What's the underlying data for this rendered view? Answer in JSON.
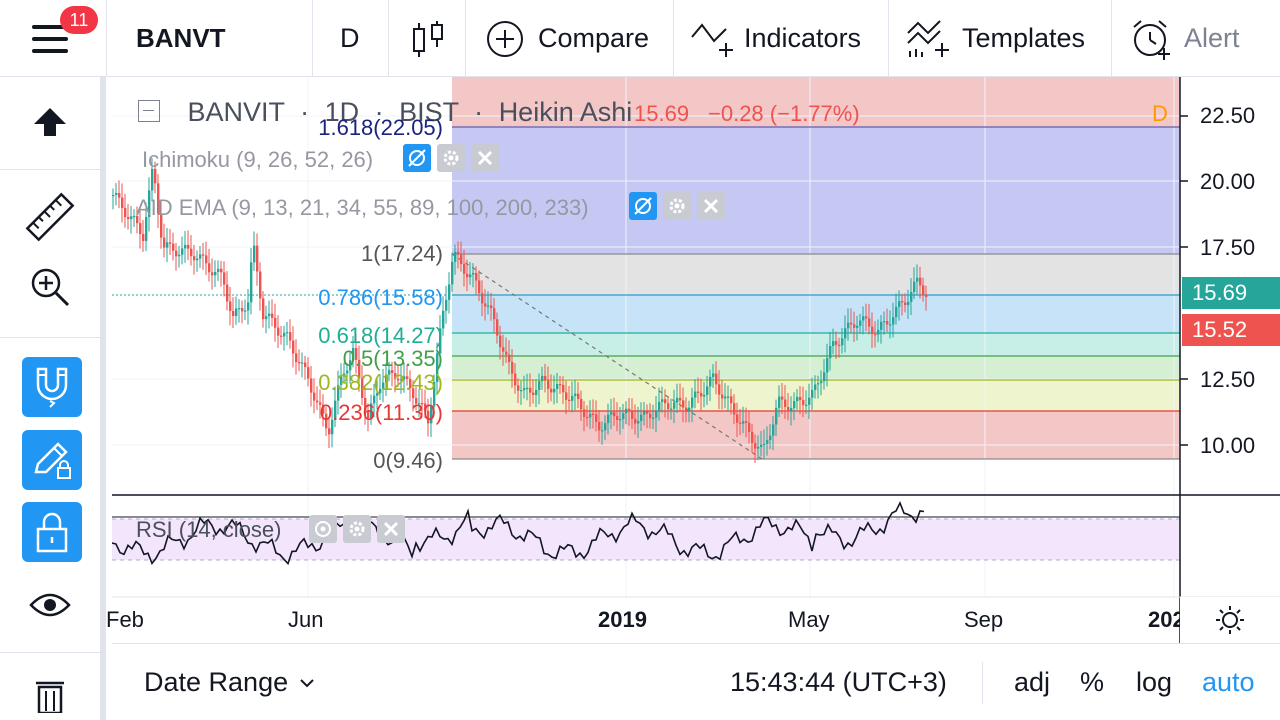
{
  "toolbar": {
    "notification_count": "11",
    "symbol": "BANVT",
    "interval": "D",
    "compare_label": "Compare",
    "indicators_label": "Indicators",
    "templates_label": "Templates",
    "alert_label": "Alert"
  },
  "legend": {
    "symbol": "BANVIT",
    "separator": "·",
    "interval": "1D",
    "exchange": "BIST",
    "chart_style": "Heikin Ashi",
    "last_price": "15.69",
    "change": "−0.28 (−1.77%)",
    "session_marker": "D"
  },
  "indicators": {
    "ichimoku": "Ichimoku (9, 26, 52, 26)",
    "ema": "AID EMA (9, 13, 21, 34, 55, 89, 100, 200, 233)",
    "rsi": "RSI (14, close)"
  },
  "fib_levels": [
    {
      "label": "1.618(22.05)",
      "color": "#1a237e"
    },
    {
      "label": "1(17.24)",
      "color": "#555555"
    },
    {
      "label": "0.786(15.58)",
      "color": "#2196f3"
    },
    {
      "label": "0.618(14.27)",
      "color": "#1fae93"
    },
    {
      "label": "0.5(13.35)",
      "color": "#43a047"
    },
    {
      "label": "0.382(12.43)",
      "color": "#a0b81e"
    },
    {
      "label": "0.236(11.30)",
      "color": "#e53935"
    },
    {
      "label": "0(9.46)",
      "color": "#555555"
    }
  ],
  "price_axis": {
    "ticks": [
      "22.50",
      "20.00",
      "17.50",
      "12.50",
      "10.00"
    ],
    "current_price": "15.69",
    "second_price": "15.52",
    "current_color": "#26a69a",
    "second_color": "#ef5350"
  },
  "time_axis": {
    "ticks": [
      "Feb",
      "Jun",
      "2019",
      "May",
      "Sep",
      "202"
    ]
  },
  "bottom": {
    "date_range_label": "Date Range",
    "clock": "15:43:44 (UTC+3)",
    "adj_label": "adj",
    "percent_label": "%",
    "log_label": "log",
    "auto_label": "auto"
  },
  "colors": {
    "up": "#26a69a",
    "down": "#ef5350",
    "accent": "#2196f3"
  }
}
